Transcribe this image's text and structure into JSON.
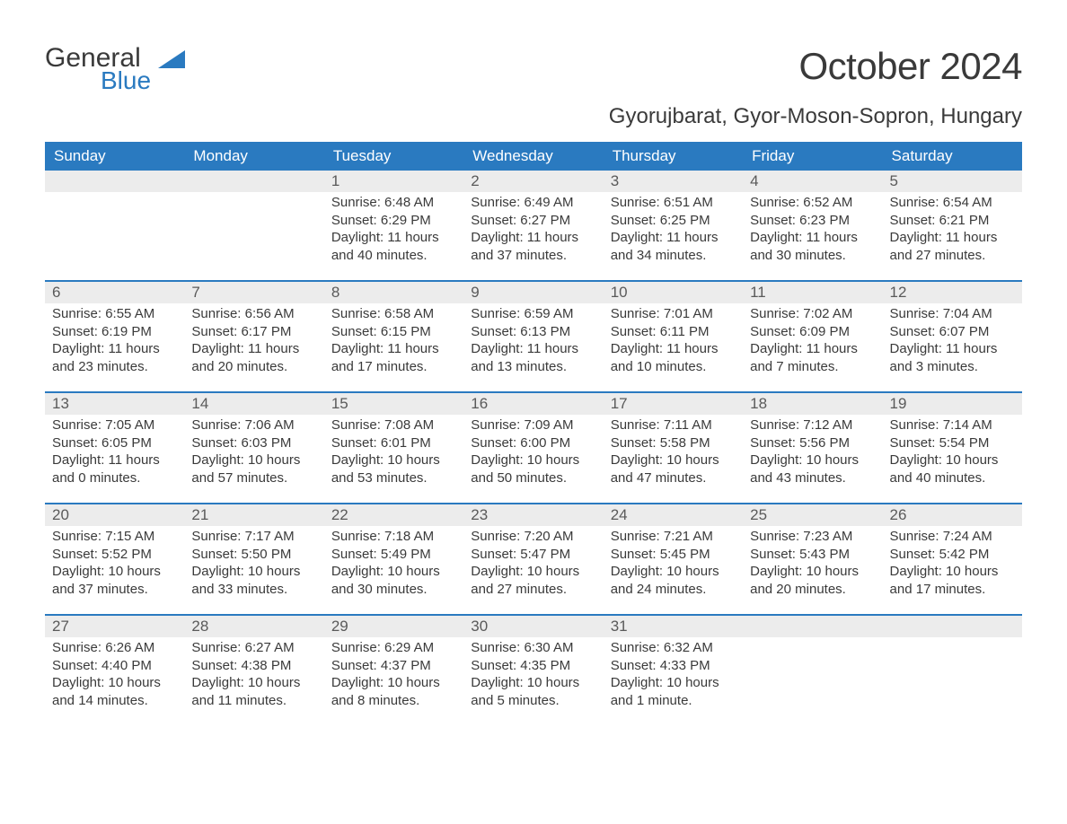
{
  "brand": {
    "general": "General",
    "blue": "Blue"
  },
  "title": "October 2024",
  "location": "Gyorujbarat, Gyor-Moson-Sopron, Hungary",
  "colors": {
    "header_bg": "#2a7ac0",
    "header_text": "#ffffff",
    "daynum_bg": "#ececec",
    "text": "#3a3a3a",
    "week_border": "#2a7ac0"
  },
  "font": {
    "family": "Arial, Helvetica, sans-serif",
    "body_size": 15,
    "title_size": 42,
    "location_size": 24,
    "dow_size": 17
  },
  "days_of_week": [
    "Sunday",
    "Monday",
    "Tuesday",
    "Wednesday",
    "Thursday",
    "Friday",
    "Saturday"
  ],
  "weeks": [
    [
      null,
      null,
      {
        "n": "1",
        "sunrise": "Sunrise: 6:48 AM",
        "sunset": "Sunset: 6:29 PM",
        "dl1": "Daylight: 11 hours",
        "dl2": "and 40 minutes."
      },
      {
        "n": "2",
        "sunrise": "Sunrise: 6:49 AM",
        "sunset": "Sunset: 6:27 PM",
        "dl1": "Daylight: 11 hours",
        "dl2": "and 37 minutes."
      },
      {
        "n": "3",
        "sunrise": "Sunrise: 6:51 AM",
        "sunset": "Sunset: 6:25 PM",
        "dl1": "Daylight: 11 hours",
        "dl2": "and 34 minutes."
      },
      {
        "n": "4",
        "sunrise": "Sunrise: 6:52 AM",
        "sunset": "Sunset: 6:23 PM",
        "dl1": "Daylight: 11 hours",
        "dl2": "and 30 minutes."
      },
      {
        "n": "5",
        "sunrise": "Sunrise: 6:54 AM",
        "sunset": "Sunset: 6:21 PM",
        "dl1": "Daylight: 11 hours",
        "dl2": "and 27 minutes."
      }
    ],
    [
      {
        "n": "6",
        "sunrise": "Sunrise: 6:55 AM",
        "sunset": "Sunset: 6:19 PM",
        "dl1": "Daylight: 11 hours",
        "dl2": "and 23 minutes."
      },
      {
        "n": "7",
        "sunrise": "Sunrise: 6:56 AM",
        "sunset": "Sunset: 6:17 PM",
        "dl1": "Daylight: 11 hours",
        "dl2": "and 20 minutes."
      },
      {
        "n": "8",
        "sunrise": "Sunrise: 6:58 AM",
        "sunset": "Sunset: 6:15 PM",
        "dl1": "Daylight: 11 hours",
        "dl2": "and 17 minutes."
      },
      {
        "n": "9",
        "sunrise": "Sunrise: 6:59 AM",
        "sunset": "Sunset: 6:13 PM",
        "dl1": "Daylight: 11 hours",
        "dl2": "and 13 minutes."
      },
      {
        "n": "10",
        "sunrise": "Sunrise: 7:01 AM",
        "sunset": "Sunset: 6:11 PM",
        "dl1": "Daylight: 11 hours",
        "dl2": "and 10 minutes."
      },
      {
        "n": "11",
        "sunrise": "Sunrise: 7:02 AM",
        "sunset": "Sunset: 6:09 PM",
        "dl1": "Daylight: 11 hours",
        "dl2": "and 7 minutes."
      },
      {
        "n": "12",
        "sunrise": "Sunrise: 7:04 AM",
        "sunset": "Sunset: 6:07 PM",
        "dl1": "Daylight: 11 hours",
        "dl2": "and 3 minutes."
      }
    ],
    [
      {
        "n": "13",
        "sunrise": "Sunrise: 7:05 AM",
        "sunset": "Sunset: 6:05 PM",
        "dl1": "Daylight: 11 hours",
        "dl2": "and 0 minutes."
      },
      {
        "n": "14",
        "sunrise": "Sunrise: 7:06 AM",
        "sunset": "Sunset: 6:03 PM",
        "dl1": "Daylight: 10 hours",
        "dl2": "and 57 minutes."
      },
      {
        "n": "15",
        "sunrise": "Sunrise: 7:08 AM",
        "sunset": "Sunset: 6:01 PM",
        "dl1": "Daylight: 10 hours",
        "dl2": "and 53 minutes."
      },
      {
        "n": "16",
        "sunrise": "Sunrise: 7:09 AM",
        "sunset": "Sunset: 6:00 PM",
        "dl1": "Daylight: 10 hours",
        "dl2": "and 50 minutes."
      },
      {
        "n": "17",
        "sunrise": "Sunrise: 7:11 AM",
        "sunset": "Sunset: 5:58 PM",
        "dl1": "Daylight: 10 hours",
        "dl2": "and 47 minutes."
      },
      {
        "n": "18",
        "sunrise": "Sunrise: 7:12 AM",
        "sunset": "Sunset: 5:56 PM",
        "dl1": "Daylight: 10 hours",
        "dl2": "and 43 minutes."
      },
      {
        "n": "19",
        "sunrise": "Sunrise: 7:14 AM",
        "sunset": "Sunset: 5:54 PM",
        "dl1": "Daylight: 10 hours",
        "dl2": "and 40 minutes."
      }
    ],
    [
      {
        "n": "20",
        "sunrise": "Sunrise: 7:15 AM",
        "sunset": "Sunset: 5:52 PM",
        "dl1": "Daylight: 10 hours",
        "dl2": "and 37 minutes."
      },
      {
        "n": "21",
        "sunrise": "Sunrise: 7:17 AM",
        "sunset": "Sunset: 5:50 PM",
        "dl1": "Daylight: 10 hours",
        "dl2": "and 33 minutes."
      },
      {
        "n": "22",
        "sunrise": "Sunrise: 7:18 AM",
        "sunset": "Sunset: 5:49 PM",
        "dl1": "Daylight: 10 hours",
        "dl2": "and 30 minutes."
      },
      {
        "n": "23",
        "sunrise": "Sunrise: 7:20 AM",
        "sunset": "Sunset: 5:47 PM",
        "dl1": "Daylight: 10 hours",
        "dl2": "and 27 minutes."
      },
      {
        "n": "24",
        "sunrise": "Sunrise: 7:21 AM",
        "sunset": "Sunset: 5:45 PM",
        "dl1": "Daylight: 10 hours",
        "dl2": "and 24 minutes."
      },
      {
        "n": "25",
        "sunrise": "Sunrise: 7:23 AM",
        "sunset": "Sunset: 5:43 PM",
        "dl1": "Daylight: 10 hours",
        "dl2": "and 20 minutes."
      },
      {
        "n": "26",
        "sunrise": "Sunrise: 7:24 AM",
        "sunset": "Sunset: 5:42 PM",
        "dl1": "Daylight: 10 hours",
        "dl2": "and 17 minutes."
      }
    ],
    [
      {
        "n": "27",
        "sunrise": "Sunrise: 6:26 AM",
        "sunset": "Sunset: 4:40 PM",
        "dl1": "Daylight: 10 hours",
        "dl2": "and 14 minutes."
      },
      {
        "n": "28",
        "sunrise": "Sunrise: 6:27 AM",
        "sunset": "Sunset: 4:38 PM",
        "dl1": "Daylight: 10 hours",
        "dl2": "and 11 minutes."
      },
      {
        "n": "29",
        "sunrise": "Sunrise: 6:29 AM",
        "sunset": "Sunset: 4:37 PM",
        "dl1": "Daylight: 10 hours",
        "dl2": "and 8 minutes."
      },
      {
        "n": "30",
        "sunrise": "Sunrise: 6:30 AM",
        "sunset": "Sunset: 4:35 PM",
        "dl1": "Daylight: 10 hours",
        "dl2": "and 5 minutes."
      },
      {
        "n": "31",
        "sunrise": "Sunrise: 6:32 AM",
        "sunset": "Sunset: 4:33 PM",
        "dl1": "Daylight: 10 hours",
        "dl2": "and 1 minute."
      },
      null,
      null
    ]
  ]
}
